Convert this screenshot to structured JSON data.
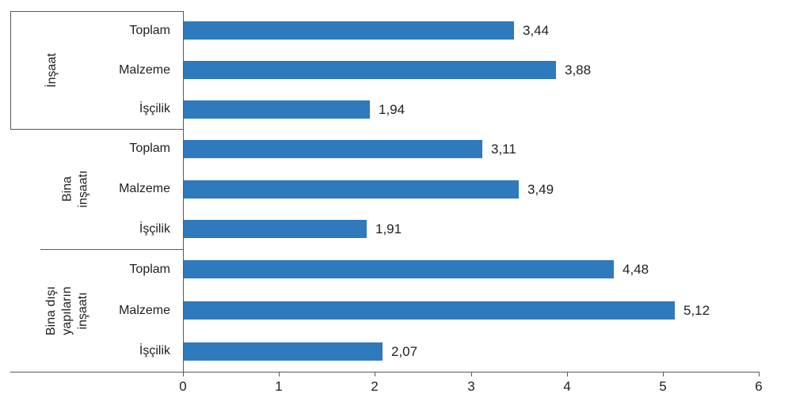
{
  "chart_data": {
    "type": "bar",
    "orientation": "horizontal",
    "title": "",
    "xlabel": "",
    "ylabel": "",
    "xlim": [
      0,
      6
    ],
    "x_ticks": [
      "0",
      "1",
      "2",
      "3",
      "4",
      "5",
      "6"
    ],
    "grid": false,
    "legend": false,
    "bar_color": "#2e7abd",
    "axis_color": "#595959",
    "text_color": "#1f1f1f",
    "groups": [
      {
        "label": "İnşaat",
        "label_lines": [
          "İnşaat"
        ],
        "items": [
          {
            "category": "Toplam",
            "value": 3.44,
            "value_label": "3,44"
          },
          {
            "category": "Malzeme",
            "value": 3.88,
            "value_label": "3,88"
          },
          {
            "category": "İşçilik",
            "value": 1.94,
            "value_label": "1,94"
          }
        ]
      },
      {
        "label": "Bina inşaatı",
        "label_lines": [
          "Bina",
          "inşaatı"
        ],
        "items": [
          {
            "category": "Toplam",
            "value": 3.11,
            "value_label": "3,11"
          },
          {
            "category": "Malzeme",
            "value": 3.49,
            "value_label": "3,49"
          },
          {
            "category": "İşçilik",
            "value": 1.91,
            "value_label": "1,91"
          }
        ]
      },
      {
        "label": "Bina dışı yapıların inşaatı",
        "label_lines": [
          "Bina dışı",
          "yapıların",
          "inşaatı"
        ],
        "items": [
          {
            "category": "Toplam",
            "value": 4.48,
            "value_label": "4,48"
          },
          {
            "category": "Malzeme",
            "value": 5.12,
            "value_label": "5,12"
          },
          {
            "category": "İşçilik",
            "value": 2.07,
            "value_label": "2,07"
          }
        ]
      }
    ]
  }
}
